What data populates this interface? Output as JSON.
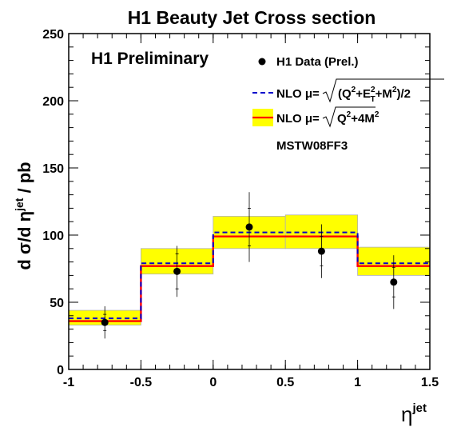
{
  "chart_data": {
    "type": "histogram",
    "title": "H1 Beauty Jet Cross section",
    "annotation": "H1 Preliminary",
    "xlabel_symbol": "η",
    "xlabel_sup": "jet",
    "ylabel_prefix": "d σ/d η",
    "ylabel_sup": "jet",
    "ylabel_suffix": " / pb",
    "xlim": [
      -1,
      1.5
    ],
    "ylim": [
      0,
      250
    ],
    "xticks": [
      -1,
      -0.5,
      0,
      0.5,
      1,
      1.5
    ],
    "xtick_labels": [
      "-1",
      "-0.5",
      "0",
      "0.5",
      "1",
      "1.5"
    ],
    "yticks": [
      0,
      50,
      100,
      150,
      200,
      250
    ],
    "ytick_labels": [
      "0",
      "50",
      "100",
      "150",
      "200",
      "250"
    ],
    "bin_edges": [
      -1,
      -0.5,
      0,
      0.5,
      1,
      1.5
    ],
    "data": {
      "name": "H1 Data (Prel.)",
      "x": [
        -0.75,
        -0.25,
        0.25,
        0.75,
        1.25
      ],
      "y": [
        35,
        73,
        106,
        88,
        65
      ],
      "err_stat": [
        6,
        13,
        14,
        11,
        11
      ],
      "err_tot": [
        12,
        19,
        26,
        20,
        20
      ]
    },
    "series": [
      {
        "name_prefix": "NLO μ=",
        "name_formula": "(Q²+E²T+M²)/2",
        "name_formula_main": "(Q",
        "name_sup1": "2",
        "name_mid1": "+E",
        "name_sup2": "2",
        "name_sub2": "T",
        "name_mid2": "+M",
        "name_sup3": "2",
        "name_end": ")/2",
        "style": "dashed",
        "color": "#0000cc",
        "values": [
          38,
          79,
          102,
          102,
          79
        ]
      },
      {
        "name_prefix": "NLO μ=",
        "name_formula": "Q²+4M²",
        "name_formula_main": "Q",
        "name_sup1": "2",
        "name_mid1": "+4M",
        "name_sup2": "2",
        "style": "solid",
        "color": "#ff0000",
        "band_color": "#ffff00",
        "values": [
          36,
          77,
          99,
          99,
          77
        ],
        "band_low": [
          33,
          71,
          90,
          90,
          70
        ],
        "band_high": [
          44,
          90,
          114,
          115,
          91
        ]
      }
    ],
    "pdf_label": "MSTW08FF3",
    "legend_position": "top-right"
  }
}
